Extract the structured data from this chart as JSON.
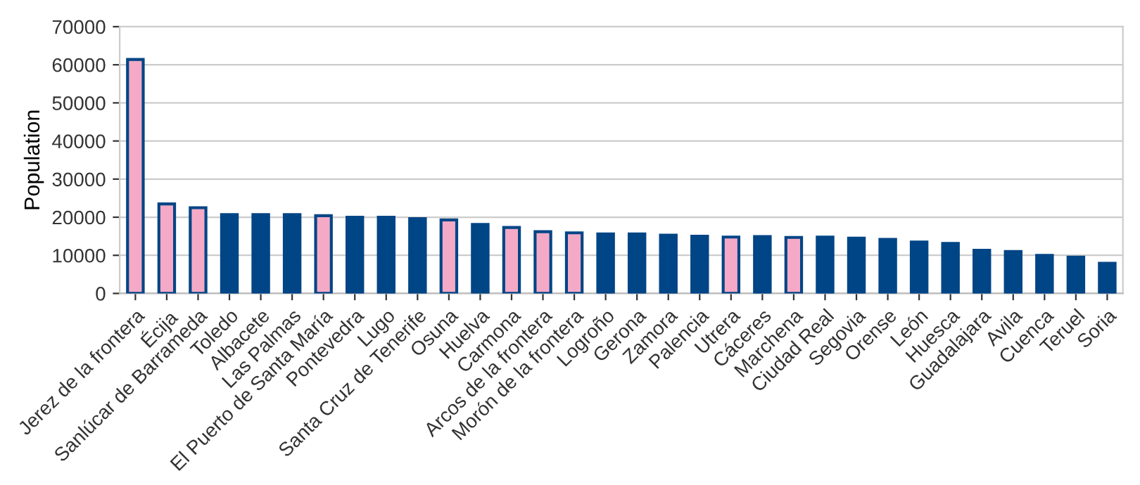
{
  "chart_data": {
    "type": "bar",
    "ylabel": "Population",
    "categories": [
      "Jerez de la frontera",
      "Écija",
      "Sanlúcar de Barrameda",
      "Toledo",
      "Albacete",
      "Las Palmas",
      "El Puerto de Santa María",
      "Pontevedra",
      "Lugo",
      "Santa Cruz de Tenerife",
      "Osuna",
      "Huelva",
      "Carmona",
      "Arcos de la frontera",
      "Morón de la frontera",
      "Logroño",
      "Gerona",
      "Zamora",
      "Palencia",
      "Utrera",
      "Cáceres",
      "Marchena",
      "Ciudad Real",
      "Segovia",
      "Orense",
      "León",
      "Huesca",
      "Guadalajara",
      "Avila",
      "Cuenca",
      "Teruel",
      "Soria"
    ],
    "values": [
      61400,
      23500,
      22500,
      20700,
      20700,
      20700,
      20400,
      20000,
      20000,
      19600,
      19300,
      18100,
      17300,
      16200,
      15900,
      15600,
      15600,
      15300,
      15000,
      14800,
      14900,
      14700,
      14800,
      14500,
      14200,
      13500,
      13100,
      11300,
      11000,
      10000,
      9500,
      7900
    ],
    "colors": [
      "#f4aac6",
      "#f4aac6",
      "#f4aac6",
      "#004586",
      "#004586",
      "#004586",
      "#f4aac6",
      "#004586",
      "#004586",
      "#004586",
      "#f4aac6",
      "#004586",
      "#f4aac6",
      "#f4aac6",
      "#f4aac6",
      "#004586",
      "#004586",
      "#004586",
      "#004586",
      "#f4aac6",
      "#004586",
      "#f4aac6",
      "#004586",
      "#004586",
      "#004586",
      "#004586",
      "#004586",
      "#004586",
      "#004586",
      "#004586",
      "#004586",
      "#004586"
    ],
    "ylim": [
      0,
      70000
    ],
    "yticks": [
      0,
      10000,
      20000,
      30000,
      40000,
      50000,
      60000,
      70000
    ],
    "grid": "y",
    "legend": false
  }
}
